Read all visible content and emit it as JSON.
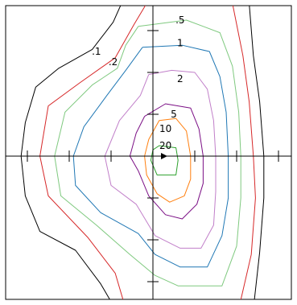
{
  "chart_data": {
    "type": "contour",
    "title": "",
    "xlabel": "",
    "ylabel": "",
    "grid": false,
    "xlim": [
      -7,
      6.5
    ],
    "ylim": [
      -7,
      7
    ],
    "x_ticks": [
      -6,
      -4,
      -2,
      0,
      2,
      4,
      6
    ],
    "y_ticks": [
      -6,
      -4,
      -2,
      0,
      2,
      4,
      6
    ],
    "marker": {
      "shape": "arrow-right",
      "x": 0.5,
      "y": 0
    },
    "levels": [
      {
        "label": ".1",
        "value": 0.1,
        "color": "#000000",
        "label_at": [
          -2.7,
          5
        ],
        "points": [
          [
            -1.5,
            7.3
          ],
          [
            -1.9,
            6.4
          ],
          [
            -2.9,
            5.1
          ],
          [
            -4.5,
            4.2
          ],
          [
            -5.6,
            3.3
          ],
          [
            -6.1,
            1.6
          ],
          [
            -6.3,
            0
          ],
          [
            -6.1,
            -1.9
          ],
          [
            -5.4,
            -3.6
          ],
          [
            -3.7,
            -4.5
          ],
          [
            -2.5,
            -6.1
          ],
          [
            -1.8,
            -7.3
          ],
          [
            4.8,
            -7.3
          ],
          [
            5.1,
            -4.6
          ],
          [
            5.3,
            -2
          ],
          [
            5.3,
            0
          ],
          [
            5.1,
            2.6
          ],
          [
            4.8,
            4.8
          ],
          [
            4.6,
            7.3
          ]
        ]
      },
      {
        "label": ".2",
        "value": 0.2,
        "color": "#d62728",
        "label_at": [
          -1.9,
          4.5
        ],
        "points": [
          [
            -0.3,
            7.3
          ],
          [
            -0.9,
            6.3
          ],
          [
            -1.8,
            4.7
          ],
          [
            -3.5,
            3.5
          ],
          [
            -5.0,
            2.4
          ],
          [
            -5.4,
            0
          ],
          [
            -5.0,
            -1.9
          ],
          [
            -3.1,
            -3.9
          ],
          [
            -1.8,
            -5.6
          ],
          [
            -1.3,
            -7.3
          ],
          [
            4.1,
            -7.3
          ],
          [
            4.7,
            -4.7
          ],
          [
            4.9,
            -2
          ],
          [
            4.8,
            0
          ],
          [
            4.6,
            2.6
          ],
          [
            4.3,
            4.8
          ],
          [
            3.8,
            7.3
          ]
        ]
      },
      {
        "label": ".5",
        "value": 0.5,
        "color": "#7fc97f",
        "label_at": [
          1.3,
          6.5
        ],
        "points": [
          [
            -0.7,
            6.2
          ],
          [
            -1.3,
            5.3
          ],
          [
            -1.7,
            4.2
          ],
          [
            -2.9,
            3.4
          ],
          [
            -4.2,
            2.1
          ],
          [
            -4.7,
            0
          ],
          [
            -4.4,
            -1.9
          ],
          [
            -2.7,
            -3.3
          ],
          [
            -1.1,
            -4.7
          ],
          [
            0.1,
            -5.7
          ],
          [
            1.2,
            -6.2
          ],
          [
            3.3,
            -6.2
          ],
          [
            4.0,
            -4.3
          ],
          [
            4.2,
            -2
          ],
          [
            4.2,
            0
          ],
          [
            4.1,
            2.1
          ],
          [
            3.8,
            4.3
          ],
          [
            3.2,
            5.9
          ],
          [
            1.6,
            6.5
          ],
          [
            -0.7,
            6.2
          ]
        ]
      },
      {
        "label": "1",
        "value": 1,
        "color": "#1f77b4",
        "label_at": [
          1.3,
          5.4
        ],
        "points": [
          [
            -0.5,
            5.2
          ],
          [
            -1.3,
            4.1
          ],
          [
            -2.2,
            2.9
          ],
          [
            -3.3,
            1.4
          ],
          [
            -3.8,
            0
          ],
          [
            -3.7,
            -1.4
          ],
          [
            -2.5,
            -2.7
          ],
          [
            -0.7,
            -3.7
          ],
          [
            0.1,
            -4.7
          ],
          [
            1.3,
            -5.3
          ],
          [
            2.6,
            -5.3
          ],
          [
            3.3,
            -3.8
          ],
          [
            3.6,
            -2
          ],
          [
            3.6,
            0
          ],
          [
            3.5,
            2.1
          ],
          [
            3.2,
            3.8
          ],
          [
            2.7,
            5.0
          ],
          [
            1.4,
            5.3
          ],
          [
            -0.5,
            5.2
          ]
        ]
      },
      {
        "label": "2",
        "value": 2,
        "color": "#c17fc9",
        "label_at": [
          1.3,
          3.7
        ],
        "points": [
          [
            -0.2,
            3.9
          ],
          [
            -0.6,
            2.9
          ],
          [
            -1.6,
            1.7
          ],
          [
            -2.3,
            0
          ],
          [
            -2.0,
            -1.4
          ],
          [
            -0.8,
            -2.3
          ],
          [
            0.1,
            -3.8
          ],
          [
            1.3,
            -4.4
          ],
          [
            2.3,
            -4.4
          ],
          [
            2.9,
            -3.3
          ],
          [
            3.0,
            -1.7
          ],
          [
            3.0,
            0
          ],
          [
            2.9,
            1.7
          ],
          [
            2.6,
            3.2
          ],
          [
            2.0,
            4.0
          ],
          [
            0.9,
            4.1
          ],
          [
            -0.2,
            3.9
          ]
        ]
      },
      {
        "label": "5",
        "value": 5,
        "color": "#7b0f85",
        "label_at": [
          1.0,
          2.0
        ],
        "points": [
          [
            -0.4,
            1.9
          ],
          [
            -0.8,
            1.1
          ],
          [
            -1.1,
            0
          ],
          [
            -0.7,
            -0.7
          ],
          [
            -0.2,
            -1.9
          ],
          [
            0.6,
            -2.8
          ],
          [
            1.4,
            -3.0
          ],
          [
            2.1,
            -2.3
          ],
          [
            2.4,
            -1.3
          ],
          [
            2.4,
            0
          ],
          [
            2.2,
            1.3
          ],
          [
            1.8,
            2.3
          ],
          [
            0.6,
            2.5
          ],
          [
            -0.4,
            1.9
          ]
        ]
      },
      {
        "label": "10",
        "value": 10,
        "color": "#ff7f0e",
        "label_at": [
          0.6,
          1.3
        ],
        "points": [
          [
            -0.2,
            0.8
          ],
          [
            -0.4,
            0
          ],
          [
            -0.3,
            -0.9
          ],
          [
            0.2,
            -1.8
          ],
          [
            0.8,
            -2.2
          ],
          [
            1.5,
            -1.9
          ],
          [
            1.8,
            -1.1
          ],
          [
            1.8,
            0
          ],
          [
            1.6,
            1.2
          ],
          [
            1.1,
            1.8
          ],
          [
            0.3,
            1.7
          ],
          [
            -0.2,
            0.8
          ]
        ]
      },
      {
        "label": "20",
        "value": 20,
        "color": "#2ca02c",
        "label_at": [
          0.6,
          0.5
        ],
        "points": [
          [
            0,
            0.3
          ],
          [
            -0.1,
            -0.2
          ],
          [
            0.2,
            -0.9
          ],
          [
            1.1,
            -0.9
          ],
          [
            1.2,
            -0.2
          ],
          [
            1.1,
            0.4
          ],
          [
            0.3,
            0.5
          ],
          [
            0,
            0.3
          ]
        ]
      }
    ]
  }
}
